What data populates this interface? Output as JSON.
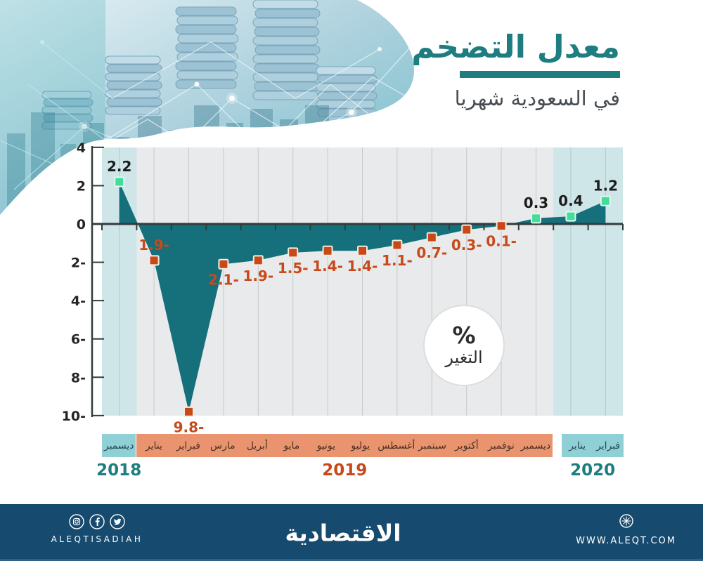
{
  "chart_data": {
    "type": "area",
    "title": "معدل التضخم",
    "subtitle": "في السعودية شهريا",
    "unit_badge": {
      "symbol": "%",
      "label": "التغير"
    },
    "ylim": [
      -10,
      4
    ],
    "grid": "vertical-only",
    "y_ticks": [
      {
        "v": 4,
        "label": "4"
      },
      {
        "v": 2,
        "label": "2"
      },
      {
        "v": 0,
        "label": "0"
      },
      {
        "v": -2,
        "label": "2-"
      },
      {
        "v": -4,
        "label": "4-"
      },
      {
        "v": -6,
        "label": "6-"
      },
      {
        "v": -8,
        "label": "8-"
      },
      {
        "v": -10,
        "label": "10-"
      }
    ],
    "points": [
      {
        "month": "ديسمبر",
        "year": "2018",
        "value": 2.2,
        "label": "2.2",
        "label_pos": "above",
        "band": "teal"
      },
      {
        "month": "يناير",
        "year": "2019",
        "value": -1.9,
        "label": "1.9-",
        "label_pos": "above",
        "band": "orange"
      },
      {
        "month": "فبراير",
        "year": "2019",
        "value": -9.8,
        "label": "9.8-",
        "label_pos": "below",
        "band": "orange"
      },
      {
        "month": "مارس",
        "year": "2019",
        "value": -2.1,
        "label": "2.1-",
        "label_pos": "below",
        "band": "orange"
      },
      {
        "month": "أبريل",
        "year": "2019",
        "value": -1.9,
        "label": "1.9-",
        "label_pos": "below",
        "band": "orange"
      },
      {
        "month": "مايو",
        "year": "2019",
        "value": -1.5,
        "label": "1.5-",
        "label_pos": "below",
        "band": "orange"
      },
      {
        "month": "يونيو",
        "year": "2019",
        "value": -1.4,
        "label": "1.4-",
        "label_pos": "below",
        "band": "orange"
      },
      {
        "month": "يوليو",
        "year": "2019",
        "value": -1.4,
        "label": "1.4-",
        "label_pos": "below",
        "band": "orange"
      },
      {
        "month": "أغسطس",
        "year": "2019",
        "value": -1.1,
        "label": "1.1-",
        "label_pos": "below",
        "band": "orange"
      },
      {
        "month": "سبتمبر",
        "year": "2019",
        "value": -0.7,
        "label": "0.7-",
        "label_pos": "below",
        "band": "orange"
      },
      {
        "month": "أكتوبر",
        "year": "2019",
        "value": -0.3,
        "label": "0.3-",
        "label_pos": "below",
        "band": "orange"
      },
      {
        "month": "نوفمبر",
        "year": "2019",
        "value": -0.1,
        "label": "0.1-",
        "label_pos": "below",
        "band": "orange"
      },
      {
        "month": "ديسمبر",
        "year": "2019",
        "value": 0.3,
        "label": "0.3",
        "label_pos": "above",
        "band": "orange"
      },
      {
        "month": "يناير",
        "year": "2020",
        "value": 0.4,
        "label": "0.4",
        "label_pos": "above",
        "band": "teal"
      },
      {
        "month": "فبراير",
        "year": "2020",
        "value": 1.2,
        "label": "1.2",
        "label_pos": "above",
        "band": "teal"
      }
    ],
    "x_groups": [
      {
        "year": "2018",
        "color": "teal"
      },
      {
        "year": "2019",
        "color": "orange"
      },
      {
        "year": "2020",
        "color": "teal"
      }
    ],
    "colors": {
      "area_fill": "#15707b",
      "plot_bg": "#e9eaeb",
      "plot_highlight": "#cfe6e9",
      "gridline": "#d2d4d4",
      "axis": "#333b3b",
      "marker_positive": "#43dd9b",
      "marker_positive_border": "#e4f7ec",
      "marker_negative": "#c8481a",
      "marker_negative_border": "#f3ede0",
      "label_positive": "#1c1c1c",
      "label_negative": "#c8491a",
      "accent_teal": "#1e7d80",
      "accent_orange": "#c8491a",
      "band_teal": "#8fd0d6",
      "band_orange": "#e9946f"
    }
  },
  "footer": {
    "handle": "ALEQTISADIAH",
    "logo": "الاقتصادية",
    "website": "WWW.ALEQT.COM"
  }
}
